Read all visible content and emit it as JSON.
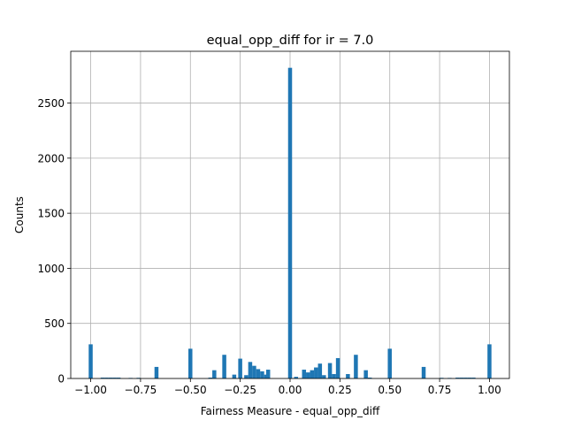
{
  "chart_data": {
    "type": "bar",
    "title": "equal_opp_diff for ir = 7.0",
    "xlabel": "Fairness Measure - equal_opp_diff",
    "ylabel": "Counts",
    "xlim": [
      -1.1,
      1.1
    ],
    "ylim": [
      0,
      2970
    ],
    "x_ticks": [
      -1.0,
      -0.75,
      -0.5,
      -0.25,
      0.0,
      0.25,
      0.5,
      0.75,
      1.0
    ],
    "x_tick_labels": [
      "−1.00",
      "−0.75",
      "−0.50",
      "−0.25",
      "0.00",
      "0.25",
      "0.50",
      "0.75",
      "1.00"
    ],
    "y_ticks": [
      0,
      500,
      1000,
      1500,
      2000,
      2500
    ],
    "y_tick_labels": [
      "0",
      "500",
      "1000",
      "1500",
      "2000",
      "2500"
    ],
    "grid": true,
    "bin_width": 0.02,
    "bars": [
      {
        "x": -1.0,
        "value": 310
      },
      {
        "x": -0.94,
        "value": 8
      },
      {
        "x": -0.92,
        "value": 8
      },
      {
        "x": -0.9,
        "value": 8
      },
      {
        "x": -0.88,
        "value": 8
      },
      {
        "x": -0.86,
        "value": 8
      },
      {
        "x": -0.8,
        "value": 5
      },
      {
        "x": -0.76,
        "value": 6
      },
      {
        "x": -0.67,
        "value": 105
      },
      {
        "x": -0.5,
        "value": 270
      },
      {
        "x": -0.4,
        "value": 8
      },
      {
        "x": -0.38,
        "value": 75
      },
      {
        "x": -0.33,
        "value": 215
      },
      {
        "x": -0.28,
        "value": 35
      },
      {
        "x": -0.25,
        "value": 180
      },
      {
        "x": -0.22,
        "value": 30
      },
      {
        "x": -0.2,
        "value": 150
      },
      {
        "x": -0.18,
        "value": 115
      },
      {
        "x": -0.16,
        "value": 85
      },
      {
        "x": -0.14,
        "value": 65
      },
      {
        "x": -0.12,
        "value": 35
      },
      {
        "x": -0.11,
        "value": 80
      },
      {
        "x": 0.0,
        "value": 2820
      },
      {
        "x": 0.03,
        "value": 15
      },
      {
        "x": 0.07,
        "value": 80
      },
      {
        "x": 0.09,
        "value": 55
      },
      {
        "x": 0.11,
        "value": 75
      },
      {
        "x": 0.13,
        "value": 100
      },
      {
        "x": 0.15,
        "value": 135
      },
      {
        "x": 0.17,
        "value": 30
      },
      {
        "x": 0.2,
        "value": 140
      },
      {
        "x": 0.22,
        "value": 40
      },
      {
        "x": 0.24,
        "value": 185
      },
      {
        "x": 0.29,
        "value": 40
      },
      {
        "x": 0.33,
        "value": 215
      },
      {
        "x": 0.38,
        "value": 75
      },
      {
        "x": 0.4,
        "value": 8
      },
      {
        "x": 0.5,
        "value": 270
      },
      {
        "x": 0.67,
        "value": 105
      },
      {
        "x": 0.76,
        "value": 6
      },
      {
        "x": 0.8,
        "value": 5
      },
      {
        "x": 0.84,
        "value": 8
      },
      {
        "x": 0.86,
        "value": 8
      },
      {
        "x": 0.88,
        "value": 8
      },
      {
        "x": 0.9,
        "value": 8
      },
      {
        "x": 0.92,
        "value": 8
      },
      {
        "x": 1.0,
        "value": 310
      }
    ],
    "bar_color": "#1f77b4",
    "grid_color": "#b0b0b0"
  }
}
